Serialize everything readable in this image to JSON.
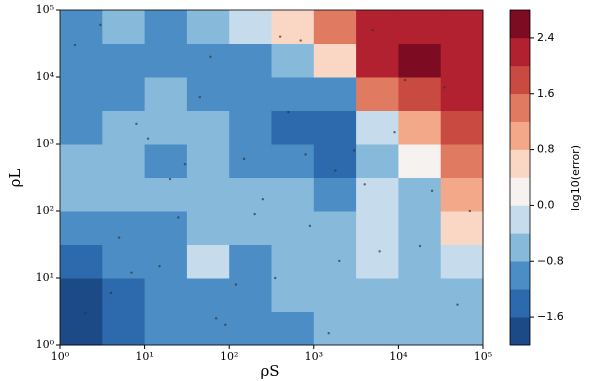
{
  "chart_data": {
    "type": "contour",
    "xlabel": "ρS",
    "ylabel": "ρL",
    "colorbar_label": "log10(error)",
    "xscale": "log",
    "yscale": "log",
    "xlim": [
      1,
      100000
    ],
    "ylim": [
      1,
      100000
    ],
    "xticks": [
      {
        "value": 1,
        "label": "10⁰"
      },
      {
        "value": 10,
        "label": "10¹"
      },
      {
        "value": 100,
        "label": "10²"
      },
      {
        "value": 1000,
        "label": "10³"
      },
      {
        "value": 10000,
        "label": "10⁴"
      },
      {
        "value": 100000,
        "label": "10⁵"
      }
    ],
    "yticks": [
      {
        "value": 1,
        "label": "10⁰"
      },
      {
        "value": 10,
        "label": "10¹"
      },
      {
        "value": 100,
        "label": "10²"
      },
      {
        "value": 1000,
        "label": "10³"
      },
      {
        "value": 10000,
        "label": "10⁴"
      },
      {
        "value": 100000,
        "label": "10⁵"
      }
    ],
    "x": [
      1.78,
      5.62,
      17.8,
      56.2,
      178,
      562,
      1780,
      5620,
      17800,
      56200
    ],
    "y": [
      1.78,
      5.62,
      17.8,
      56.2,
      178,
      562,
      1780,
      5620,
      17800,
      56200
    ],
    "z": [
      [
        -1.8,
        -1.6,
        -1.0,
        -1.0,
        -1.2,
        -1.2,
        -0.8,
        -0.8,
        -0.8,
        -0.6
      ],
      [
        -1.8,
        -1.4,
        -1.2,
        -1.0,
        -1.2,
        -0.8,
        -0.8,
        -0.6,
        -0.8,
        -0.6
      ],
      [
        -1.4,
        -1.2,
        -1.0,
        -0.2,
        -1.0,
        -0.6,
        -0.8,
        -0.4,
        -0.6,
        -0.4
      ],
      [
        -1.2,
        -1.0,
        -1.0,
        -0.8,
        -0.6,
        -0.8,
        -0.8,
        -0.4,
        -0.6,
        0.4
      ],
      [
        -0.8,
        -0.8,
        -0.6,
        -0.6,
        -0.6,
        -0.8,
        -1.0,
        -0.4,
        -0.6,
        0.8
      ],
      [
        -0.8,
        -0.6,
        -1.0,
        -0.8,
        -1.0,
        -1.2,
        -1.4,
        -0.8,
        0.2,
        1.2
      ],
      [
        -1.0,
        -0.8,
        -0.6,
        -0.8,
        -1.0,
        -1.4,
        -1.4,
        -0.4,
        1.0,
        1.6
      ],
      [
        -1.0,
        -1.2,
        -0.8,
        -1.0,
        -1.0,
        -1.2,
        -1.0,
        1.2,
        1.8,
        2.0
      ],
      [
        -1.0,
        -1.2,
        -1.2,
        -1.0,
        -1.2,
        -0.8,
        0.4,
        2.0,
        2.6,
        2.2
      ],
      [
        -1.0,
        -0.8,
        -1.0,
        -0.8,
        -0.4,
        0.4,
        1.4,
        2.0,
        2.2,
        2.0
      ]
    ],
    "levels": [
      -2.0,
      -1.6,
      -1.2,
      -0.8,
      -0.4,
      0.0,
      0.4,
      0.8,
      1.2,
      1.6,
      2.0,
      2.4,
      2.8
    ],
    "colors": [
      "#1b4a87",
      "#2c6aad",
      "#4b8dc4",
      "#87b9db",
      "#c6dcec",
      "#f5f2f0",
      "#fad7c5",
      "#f3a989",
      "#e07a61",
      "#c94a41",
      "#b2212f",
      "#7d0b22"
    ],
    "colorbar_ticks": [
      {
        "value": -1.6,
        "label": "−1.6"
      },
      {
        "value": -0.8,
        "label": "−0.8"
      },
      {
        "value": 0.0,
        "label": "0.0"
      },
      0.8,
      1.6,
      2.4
    ],
    "scatter": {
      "color": "#333333",
      "x": [
        2,
        5,
        8,
        15,
        30,
        60,
        120,
        250,
        500,
        900,
        1500,
        3000,
        6000,
        12000,
        25000,
        50000,
        3,
        7,
        20,
        45,
        90,
        200,
        400,
        800,
        2000,
        4000,
        9000,
        18000,
        35000,
        70000,
        1.5,
        4,
        11,
        25,
        70,
        150,
        350,
        700,
        1800,
        5000
      ],
      "y": [
        3,
        40,
        2000,
        15,
        500,
        20000,
        8,
        150,
        3000,
        60,
        1.5,
        800,
        25,
        9000,
        200,
        4,
        60000,
        12,
        300,
        5000,
        2,
        90,
        40000,
        700,
        18,
        250,
        1500,
        30,
        7000,
        100,
        30000,
        6,
        1200,
        80,
        2.5,
        600,
        10,
        35000,
        400,
        50000
      ]
    }
  }
}
